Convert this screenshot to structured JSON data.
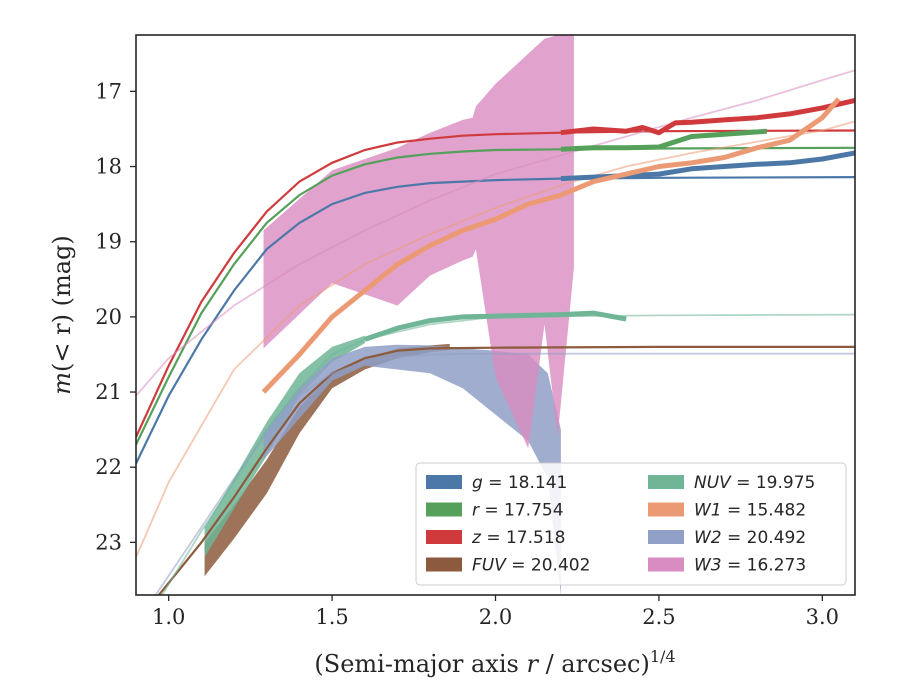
{
  "chart_data": {
    "type": "line",
    "xlabel_main": "(Semi-major axis ",
    "xlabel_var": "r",
    "xlabel_unit": " / arcsec)",
    "xlabel_exp": "1/4",
    "ylabel_main": "m",
    "ylabel_arg": "(< r)",
    "ylabel_unit": " (mag)",
    "xlim": [
      0.9,
      3.1
    ],
    "ylim": [
      23.7,
      16.25
    ],
    "y_inverted": true,
    "xticks": [
      1.0,
      1.5,
      2.0,
      2.5,
      3.0
    ],
    "xtick_labels": [
      "1.0",
      "1.5",
      "2.0",
      "2.5",
      "3.0"
    ],
    "yticks": [
      17,
      18,
      19,
      20,
      21,
      22,
      23
    ],
    "ytick_labels": [
      "17",
      "18",
      "19",
      "20",
      "21",
      "22",
      "23"
    ],
    "legend_position": "lower-right",
    "legend": [
      {
        "var": "g",
        "value": "18.141",
        "color": "#4c78a8",
        "italic_var": true
      },
      {
        "var": "r",
        "value": "17.754",
        "color": "#55a05a",
        "italic_var": true
      },
      {
        "var": "z",
        "value": "17.518",
        "color": "#d03a3c",
        "italic_var": true
      },
      {
        "var": "FUV",
        "value": "20.402",
        "color": "#8c5a3c",
        "italic_var": true
      },
      {
        "var": "NUV",
        "value": "19.975",
        "color": "#6fb596",
        "italic_var": true
      },
      {
        "var": "W1",
        "value": "15.482",
        "color": "#ec9a74",
        "italic_var": true
      },
      {
        "var": "W2",
        "value": "20.492",
        "color": "#8f9fc6",
        "italic_var": true
      },
      {
        "var": "W3",
        "value": "16.273",
        "color": "#d98cc0",
        "italic_var": true
      }
    ],
    "series": [
      {
        "name": "g",
        "color": "#4c78a8",
        "model": [
          [
            0.9,
            21.95
          ],
          [
            1.0,
            21.05
          ],
          [
            1.1,
            20.3
          ],
          [
            1.2,
            19.65
          ],
          [
            1.3,
            19.1
          ],
          [
            1.4,
            18.75
          ],
          [
            1.5,
            18.5
          ],
          [
            1.6,
            18.35
          ],
          [
            1.7,
            18.27
          ],
          [
            1.8,
            18.22
          ],
          [
            1.9,
            18.2
          ],
          [
            2.0,
            18.18
          ],
          [
            2.2,
            18.16
          ],
          [
            2.5,
            18.15
          ],
          [
            3.1,
            18.14
          ]
        ],
        "data": [
          [
            2.2,
            18.16
          ],
          [
            2.4,
            18.12
          ],
          [
            2.5,
            18.1
          ],
          [
            2.6,
            18.03
          ],
          [
            2.7,
            18.0
          ],
          [
            2.8,
            17.97
          ],
          [
            2.9,
            17.95
          ],
          [
            3.0,
            17.9
          ],
          [
            3.1,
            17.82
          ]
        ],
        "band": []
      },
      {
        "name": "r",
        "color": "#55a05a",
        "model": [
          [
            0.9,
            21.7
          ],
          [
            1.0,
            20.8
          ],
          [
            1.1,
            19.95
          ],
          [
            1.2,
            19.3
          ],
          [
            1.3,
            18.75
          ],
          [
            1.4,
            18.38
          ],
          [
            1.5,
            18.12
          ],
          [
            1.6,
            17.97
          ],
          [
            1.7,
            17.88
          ],
          [
            1.8,
            17.83
          ],
          [
            1.9,
            17.8
          ],
          [
            2.0,
            17.78
          ],
          [
            2.2,
            17.77
          ],
          [
            2.5,
            17.76
          ],
          [
            3.1,
            17.75
          ]
        ],
        "data": [
          [
            2.2,
            17.77
          ],
          [
            2.3,
            17.75
          ],
          [
            2.4,
            17.75
          ],
          [
            2.5,
            17.74
          ],
          [
            2.6,
            17.6
          ],
          [
            2.7,
            17.57
          ],
          [
            2.83,
            17.53
          ]
        ],
        "band": []
      },
      {
        "name": "z",
        "color": "#d03a3c",
        "model": [
          [
            0.9,
            21.6
          ],
          [
            1.0,
            20.65
          ],
          [
            1.1,
            19.8
          ],
          [
            1.2,
            19.15
          ],
          [
            1.3,
            18.6
          ],
          [
            1.4,
            18.2
          ],
          [
            1.5,
            17.95
          ],
          [
            1.6,
            17.78
          ],
          [
            1.7,
            17.68
          ],
          [
            1.8,
            17.63
          ],
          [
            1.9,
            17.59
          ],
          [
            2.0,
            17.57
          ],
          [
            2.2,
            17.55
          ],
          [
            2.5,
            17.53
          ],
          [
            3.1,
            17.52
          ]
        ],
        "data": [
          [
            2.2,
            17.55
          ],
          [
            2.3,
            17.5
          ],
          [
            2.4,
            17.53
          ],
          [
            2.45,
            17.48
          ],
          [
            2.5,
            17.55
          ],
          [
            2.55,
            17.42
          ],
          [
            2.6,
            17.41
          ],
          [
            2.7,
            17.38
          ],
          [
            2.8,
            17.35
          ],
          [
            2.9,
            17.3
          ],
          [
            3.0,
            17.22
          ],
          [
            3.1,
            17.12
          ]
        ],
        "band": []
      },
      {
        "name": "FUV",
        "color": "#8c5a3c",
        "model": [
          [
            0.97,
            23.7
          ],
          [
            1.1,
            23.0
          ],
          [
            1.2,
            22.4
          ],
          [
            1.3,
            21.75
          ],
          [
            1.4,
            21.15
          ],
          [
            1.5,
            20.75
          ],
          [
            1.6,
            20.55
          ],
          [
            1.7,
            20.45
          ],
          [
            1.8,
            20.42
          ],
          [
            2.0,
            20.41
          ],
          [
            2.5,
            20.4
          ],
          [
            3.1,
            20.4
          ]
        ],
        "data": [],
        "band": [
          [
            1.11,
            23.45,
            23.0
          ],
          [
            1.2,
            22.95,
            22.5
          ],
          [
            1.3,
            22.35,
            21.9
          ],
          [
            1.4,
            21.55,
            21.2
          ],
          [
            1.5,
            20.95,
            20.75
          ],
          [
            1.6,
            20.7,
            20.55
          ],
          [
            1.7,
            20.55,
            20.42
          ],
          [
            1.8,
            20.47,
            20.38
          ],
          [
            1.86,
            20.44,
            20.36
          ]
        ]
      },
      {
        "name": "NUV",
        "color": "#6fb596",
        "model": [
          [
            0.98,
            23.7
          ],
          [
            1.1,
            22.85
          ],
          [
            1.2,
            22.2
          ],
          [
            1.3,
            21.5
          ],
          [
            1.4,
            20.95
          ],
          [
            1.5,
            20.5
          ],
          [
            1.6,
            20.3
          ],
          [
            1.7,
            20.2
          ],
          [
            1.8,
            20.1
          ],
          [
            2.0,
            20.0
          ],
          [
            2.5,
            19.98
          ],
          [
            3.1,
            19.97
          ]
        ],
        "data": [
          [
            1.6,
            20.3
          ],
          [
            1.7,
            20.15
          ],
          [
            1.8,
            20.05
          ],
          [
            1.9,
            20.0
          ],
          [
            2.0,
            19.99
          ],
          [
            2.1,
            19.98
          ],
          [
            2.2,
            19.97
          ],
          [
            2.3,
            19.95
          ],
          [
            2.4,
            20.03
          ]
        ],
        "band": [
          [
            1.11,
            23.2,
            22.8
          ],
          [
            1.2,
            22.55,
            22.15
          ],
          [
            1.3,
            21.85,
            21.4
          ],
          [
            1.4,
            21.05,
            20.75
          ],
          [
            1.5,
            20.6,
            20.4
          ],
          [
            1.6,
            20.35,
            20.25
          ]
        ]
      },
      {
        "name": "W1",
        "color": "#ec9a74",
        "model": [
          [
            0.9,
            23.2
          ],
          [
            1.0,
            22.2
          ],
          [
            1.2,
            20.7
          ],
          [
            1.4,
            19.85
          ],
          [
            1.6,
            19.3
          ],
          [
            1.8,
            18.9
          ],
          [
            2.0,
            18.55
          ],
          [
            2.2,
            18.25
          ],
          [
            2.4,
            18.0
          ],
          [
            2.6,
            17.82
          ],
          [
            2.8,
            17.67
          ],
          [
            3.0,
            17.52
          ],
          [
            3.1,
            17.4
          ]
        ],
        "data": [
          [
            1.29,
            21.0
          ],
          [
            1.4,
            20.5
          ],
          [
            1.5,
            20.0
          ],
          [
            1.6,
            19.65
          ],
          [
            1.7,
            19.3
          ],
          [
            1.8,
            19.05
          ],
          [
            1.9,
            18.85
          ],
          [
            2.0,
            18.7
          ],
          [
            2.1,
            18.5
          ],
          [
            2.2,
            18.38
          ],
          [
            2.3,
            18.2
          ],
          [
            2.4,
            18.1
          ],
          [
            2.5,
            18.0
          ],
          [
            2.6,
            17.95
          ],
          [
            2.7,
            17.88
          ],
          [
            2.8,
            17.75
          ],
          [
            2.9,
            17.65
          ],
          [
            3.0,
            17.35
          ],
          [
            3.05,
            17.1
          ]
        ],
        "band": []
      },
      {
        "name": "W2",
        "color": "#8f9fc6",
        "model": [
          [
            0.96,
            23.7
          ],
          [
            1.1,
            22.8
          ],
          [
            1.2,
            22.15
          ],
          [
            1.3,
            21.55
          ],
          [
            1.4,
            21.05
          ],
          [
            1.5,
            20.75
          ],
          [
            1.6,
            20.6
          ],
          [
            1.7,
            20.53
          ],
          [
            1.8,
            20.5
          ],
          [
            2.0,
            20.49
          ],
          [
            2.5,
            20.49
          ],
          [
            3.1,
            20.49
          ]
        ],
        "data": [],
        "band": [
          [
            1.29,
            21.9,
            21.55
          ],
          [
            1.4,
            21.35,
            20.95
          ],
          [
            1.5,
            20.85,
            20.55
          ],
          [
            1.6,
            20.65,
            20.4
          ],
          [
            1.7,
            20.7,
            20.37
          ],
          [
            1.8,
            20.75,
            20.38
          ],
          [
            1.9,
            20.95,
            20.42
          ],
          [
            2.0,
            21.3,
            20.45
          ],
          [
            2.1,
            21.65,
            20.5
          ],
          [
            2.16,
            22.15,
            20.75
          ],
          [
            2.2,
            23.7,
            21.5
          ]
        ]
      },
      {
        "name": "W3",
        "color": "#d98cc0",
        "model": [
          [
            0.9,
            21.05
          ],
          [
            1.0,
            20.55
          ],
          [
            1.2,
            19.85
          ],
          [
            1.4,
            19.3
          ],
          [
            1.6,
            18.85
          ],
          [
            1.8,
            18.45
          ],
          [
            2.0,
            18.1
          ],
          [
            2.2,
            17.85
          ],
          [
            2.4,
            17.6
          ],
          [
            2.6,
            17.35
          ],
          [
            2.8,
            17.12
          ],
          [
            3.0,
            16.85
          ],
          [
            3.1,
            16.72
          ]
        ],
        "data": [],
        "band": [
          [
            1.29,
            20.42,
            18.85
          ],
          [
            1.5,
            19.55,
            18.05
          ],
          [
            1.7,
            19.85,
            17.75
          ],
          [
            1.8,
            19.45,
            17.55
          ],
          [
            1.9,
            19.25,
            17.38
          ],
          [
            1.93,
            19.2,
            17.35
          ],
          [
            1.94,
            19.1,
            17.2
          ],
          [
            2.0,
            20.8,
            16.9
          ],
          [
            2.1,
            21.75,
            16.5
          ],
          [
            2.15,
            20.1,
            16.3
          ],
          [
            2.19,
            21.6,
            16.25
          ],
          [
            2.24,
            19.35,
            16.25
          ]
        ]
      }
    ]
  }
}
